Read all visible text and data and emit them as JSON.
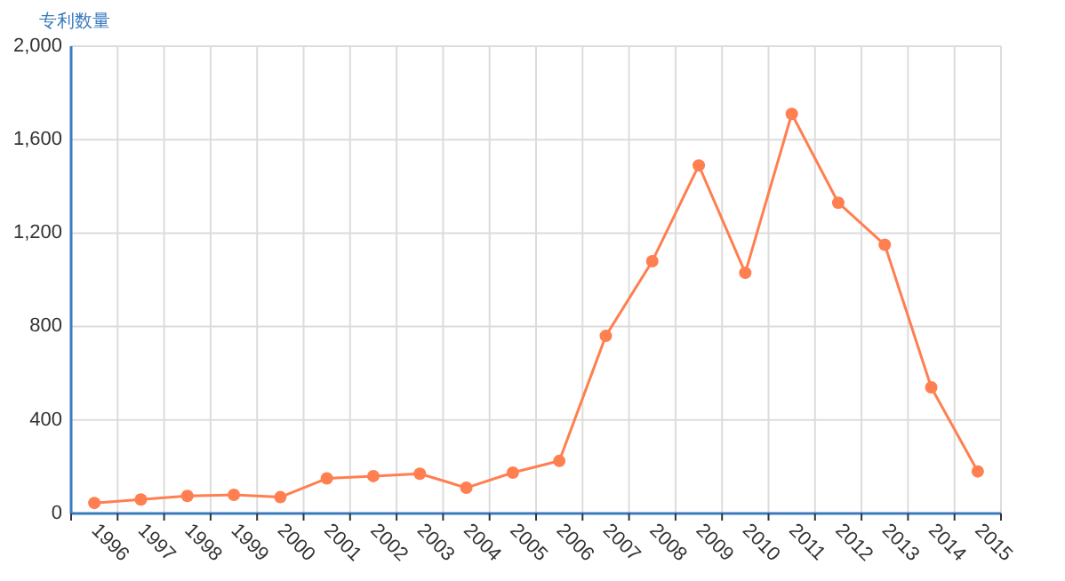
{
  "chart_data": {
    "type": "line",
    "ylabel": "专利数量",
    "categories": [
      "1996",
      "1997",
      "1998",
      "1999",
      "2000",
      "2001",
      "2002",
      "2003",
      "2004",
      "2005",
      "2006",
      "2007",
      "2008",
      "2009",
      "2010",
      "2011",
      "2012",
      "2013",
      "2014",
      "2015"
    ],
    "series": [
      {
        "color": "#ff7f50",
        "values": [
          45,
          60,
          75,
          80,
          70,
          150,
          160,
          170,
          110,
          175,
          225,
          760,
          1080,
          1490,
          1030,
          1710,
          1330,
          1150,
          540,
          180
        ]
      }
    ],
    "ylim": [
      0,
      2000
    ],
    "yticks": [
      {
        "value": 0,
        "label": "0"
      },
      {
        "value": 400,
        "label": "400"
      },
      {
        "value": 800,
        "label": "800"
      },
      {
        "value": 1200,
        "label": "1,200"
      },
      {
        "value": 1600,
        "label": "1,600"
      },
      {
        "value": 2000,
        "label": "2,000"
      }
    ],
    "grid": true,
    "marker": "circle",
    "line_style": "solid"
  }
}
